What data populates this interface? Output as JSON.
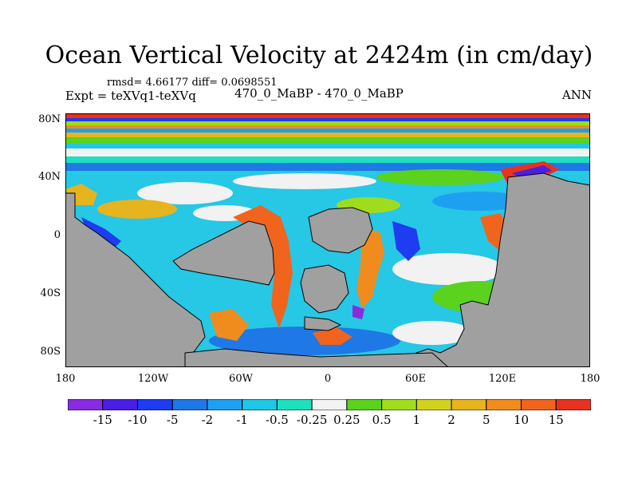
{
  "figure": {
    "title": "Ocean Vertical Velocity at 2424m (in cm/day)",
    "stats": "rmsd= 4.66177 diff= 0.0698551",
    "expt": "Expt = teXVq1-teXVq",
    "case_label": "470_0_MaBP - 470_0_MaBP",
    "season": "ANN"
  },
  "axes": {
    "y_ticks": [
      "80N",
      "40N",
      "0",
      "40S",
      "80S"
    ],
    "x_ticks": [
      "180",
      "120W",
      "60W",
      "0",
      "60E",
      "120E",
      "180"
    ]
  },
  "colorbar": {
    "labels": [
      "-15",
      "-10",
      "-5",
      "-2",
      "-1",
      "-0.5",
      "-0.25",
      "0.25",
      "0.5",
      "1",
      "2",
      "5",
      "10",
      "15"
    ],
    "colors": [
      "#8a2be2",
      "#4b1ee6",
      "#1e3cf0",
      "#1e78e6",
      "#1ea0f0",
      "#1ec8e6",
      "#1ee0be",
      "#f2f2f2",
      "#5ad21e",
      "#a0dc1e",
      "#d2d21e",
      "#e6b41e",
      "#f08c1e",
      "#f0641e",
      "#e6321e"
    ]
  },
  "land_color": "#a0a0a0"
}
